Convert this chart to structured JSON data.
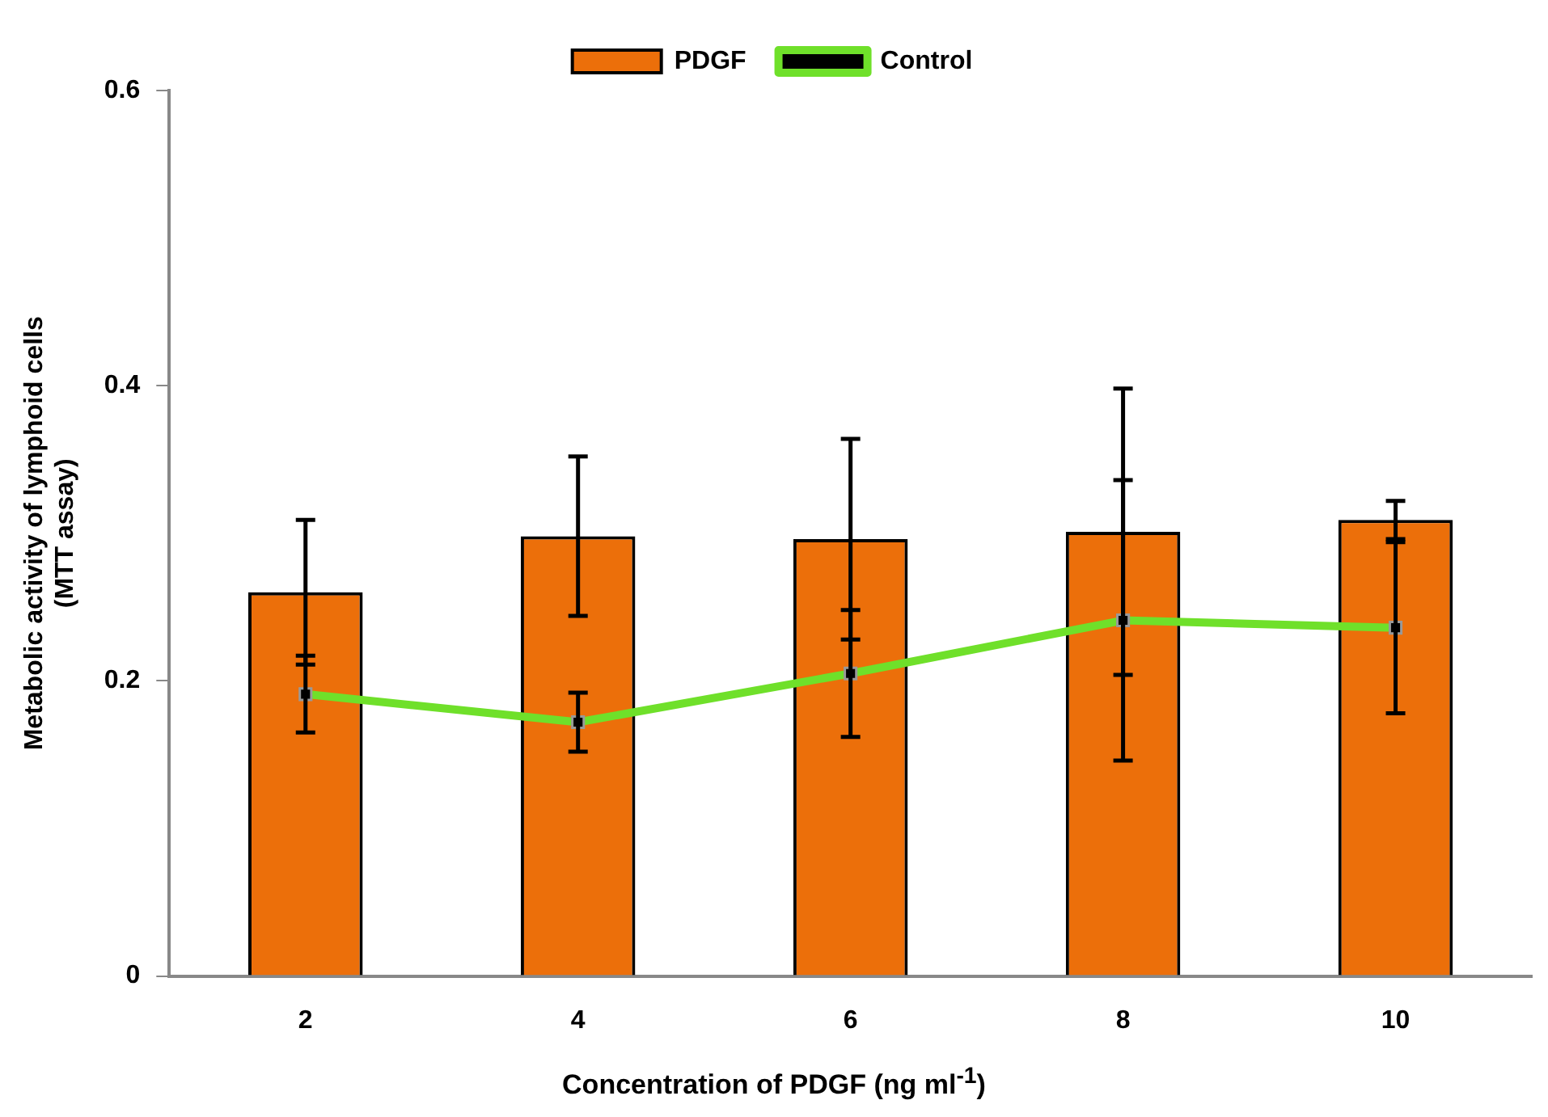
{
  "chart_data": {
    "type": "bar",
    "xlabel": "Concentration of PDGF (ng ml$^{-1}$)",
    "ylabel": "Metabolic activity of lymphoid cells\n(MTT assay)",
    "categories": [
      "2",
      "4",
      "6",
      "8",
      "10"
    ],
    "series": [
      {
        "name": "PDGF",
        "color": "#ec6f0a",
        "values": [
          0.26,
          0.298,
          0.296,
          0.301,
          0.309
        ],
        "errors": [
          0.049,
          0.054,
          0.068,
          0.097,
          0.013
        ]
      },
      {
        "name": "Control",
        "type": "line",
        "color": "#6fe02a",
        "values": [
          0.191,
          0.172,
          0.205,
          0.241,
          0.236
        ],
        "errors": [
          0.026,
          0.02,
          0.043,
          0.095,
          0.058
        ],
        "marker": "square"
      }
    ],
    "ylim": [
      0,
      0.6
    ],
    "yticks": [
      0,
      0.2,
      0.4,
      0.6
    ],
    "grid": false,
    "legend": "top"
  }
}
